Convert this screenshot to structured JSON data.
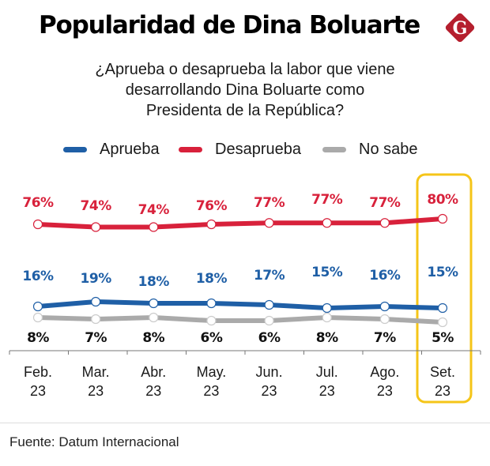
{
  "header": {
    "title": "Popularidad de Dina Boluarte",
    "logo_letter": "G",
    "subtitle_lines": [
      "¿Aprueba o desaprueba la labor que viene",
      "desarrollando Dina Boluarte como",
      "Presidenta de la República?"
    ]
  },
  "legend": [
    {
      "label": "Aprueba",
      "color": "#1f5fa6"
    },
    {
      "label": "Desaprueba",
      "color": "#d8213b"
    },
    {
      "label": "No sabe",
      "color": "#aaaaaa"
    }
  ],
  "footer": {
    "source": "Fuente: Datum Internacional"
  },
  "colors": {
    "highlight": "#f5c518",
    "logo": "#b51f2e"
  },
  "chart_data": {
    "type": "line",
    "title": "Popularidad de Dina Boluarte",
    "subtitle": "¿Aprueba o desaprueba la labor que viene desarrollando Dina Boluarte como Presidenta de la República?",
    "xlabel": "",
    "ylabel": "",
    "categories": [
      [
        "Feb.",
        "23"
      ],
      [
        "Mar.",
        "23"
      ],
      [
        "Abr.",
        "23"
      ],
      [
        "May.",
        "23"
      ],
      [
        "Jun.",
        "23"
      ],
      [
        "Jul.",
        "23"
      ],
      [
        "Ago.",
        "23"
      ],
      [
        "Set.",
        "23"
      ]
    ],
    "series": [
      {
        "name": "Desaprueba",
        "color": "#d8213b",
        "values": [
          76,
          74,
          74,
          76,
          77,
          77,
          77,
          80
        ],
        "labels": [
          "76%",
          "74%",
          "74%",
          "76%",
          "77%",
          "77%",
          "77%",
          "80%"
        ]
      },
      {
        "name": "Aprueba",
        "color": "#1f5fa6",
        "values": [
          16,
          19,
          18,
          18,
          17,
          15,
          16,
          15
        ],
        "labels": [
          "16%",
          "19%",
          "18%",
          "18%",
          "17%",
          "15%",
          "16%",
          "15%"
        ]
      },
      {
        "name": "No sabe",
        "color": "#aaaaaa",
        "label_color": "#111111",
        "values": [
          8,
          7,
          8,
          6,
          6,
          8,
          7,
          5
        ],
        "labels": [
          "8%",
          "7%",
          "8%",
          "6%",
          "6%",
          "8%",
          "7%",
          "5%"
        ]
      }
    ],
    "highlighted_category": "Set. 23",
    "grid": false,
    "legend_position": "top-center"
  }
}
